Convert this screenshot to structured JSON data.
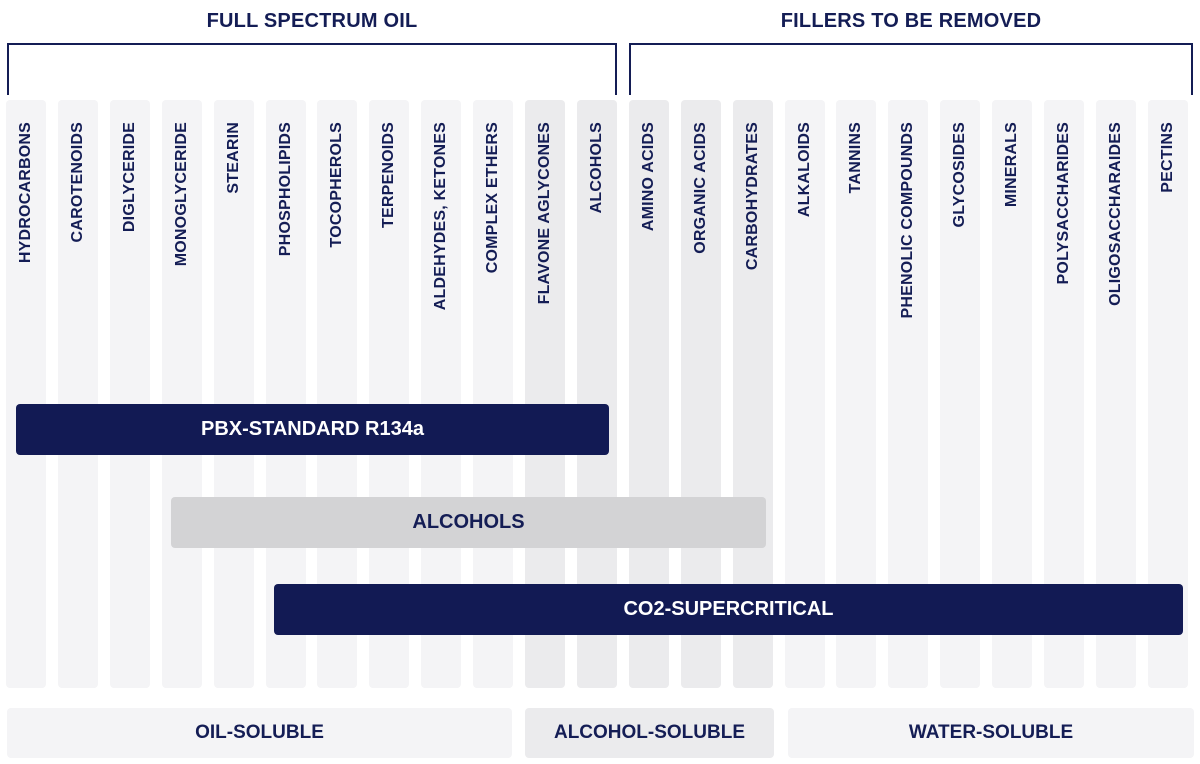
{
  "headers": {
    "left": "FULL SPECTRUM OIL",
    "right": "FILLERS TO BE REMOVED"
  },
  "columns": [
    {
      "label": "HYDROCARBONS",
      "group": "oil-soluble"
    },
    {
      "label": "CAROTENOIDS",
      "group": "oil-soluble"
    },
    {
      "label": "DIGLYCERIDE",
      "group": "oil-soluble"
    },
    {
      "label": "MONOGLYCERIDE",
      "group": "oil-soluble"
    },
    {
      "label": "STEARIN",
      "group": "oil-soluble"
    },
    {
      "label": "PHOSPHOLIPIDS",
      "group": "oil-soluble"
    },
    {
      "label": "TOCOPHEROLS",
      "group": "oil-soluble"
    },
    {
      "label": "TERPENOIDS",
      "group": "oil-soluble"
    },
    {
      "label": "ALDEHYDES, KETONES",
      "group": "oil-soluble"
    },
    {
      "label": "COMPLEX ETHERS",
      "group": "oil-soluble"
    },
    {
      "label": "FLAVONE AGLYCONES",
      "group": "alcohol-soluble"
    },
    {
      "label": "ALCOHOLS",
      "group": "alcohol-soluble"
    },
    {
      "label": "AMINO ACIDS",
      "group": "alcohol-soluble"
    },
    {
      "label": "ORGANIC ACIDS",
      "group": "alcohol-soluble"
    },
    {
      "label": "CARBOHYDRATES",
      "group": "alcohol-soluble"
    },
    {
      "label": "ALKALOIDS",
      "group": "water-soluble"
    },
    {
      "label": "TANNINS",
      "group": "water-soluble"
    },
    {
      "label": "PHENOLIC COMPOUNDS",
      "group": "water-soluble"
    },
    {
      "label": "GLYCOSIDES",
      "group": "water-soluble"
    },
    {
      "label": "MINERALS",
      "group": "water-soluble"
    },
    {
      "label": "POLYSACCHARIDES",
      "group": "water-soluble"
    },
    {
      "label": "OLIGOSACCHARAIDES",
      "group": "water-soluble"
    },
    {
      "label": "PECTINS",
      "group": "water-soluble"
    }
  ],
  "methods": [
    {
      "label": "PBX-STANDARD R134a",
      "style": "dark",
      "from": "HYDROCARBONS",
      "to": "ALCOHOLS"
    },
    {
      "label": "ALCOHOLS",
      "style": "grey",
      "from": "MONOGLYCERIDE",
      "to": "CARBOHYDRATES"
    },
    {
      "label": "CO2-SUPERCRITICAL",
      "style": "dark",
      "from": "PHOSPHOLIPIDS",
      "to": "PECTINS"
    }
  ],
  "solubility": {
    "oil": "OIL-SOLUBLE",
    "alcohol": "ALCOHOL-SOLUBLE",
    "water": "WATER-SOLUBLE"
  },
  "colors": {
    "navy": "#121a54",
    "text": "#141d55",
    "column_light": "#f4f4f6",
    "column_mid": "#ebebed",
    "bar_grey": "#d3d3d5"
  }
}
